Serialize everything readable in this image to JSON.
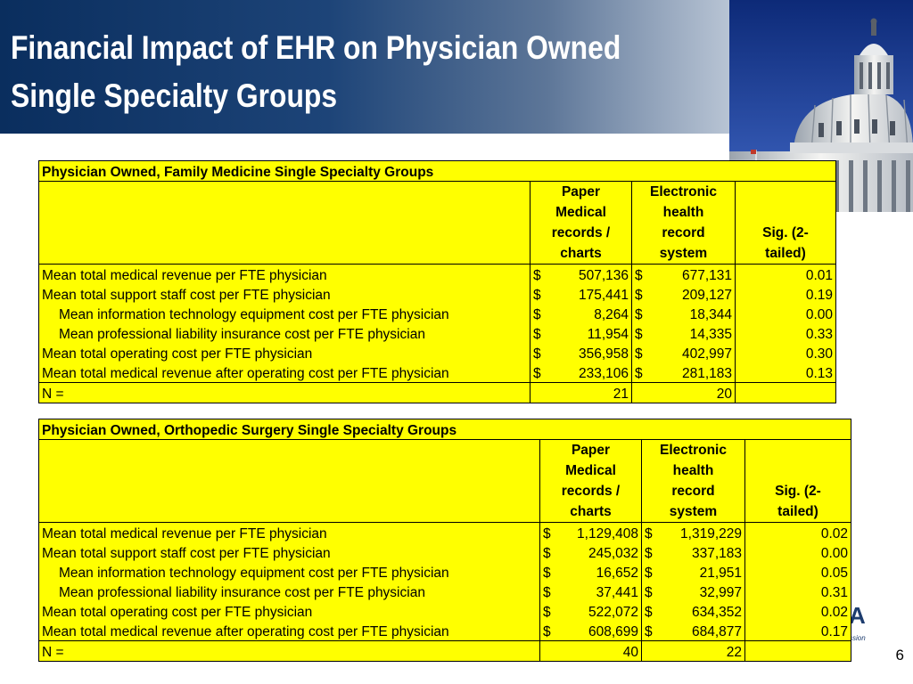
{
  "slide": {
    "title_line1": "Financial Impact of EHR on Physician Owned",
    "title_line2": "Single Specialty Groups",
    "page_number": "6",
    "logo_text": "A",
    "logo_subtext": "ssion"
  },
  "tables": [
    {
      "title": "Physician Owned, Family Medicine Single Specialty Groups",
      "col_paper": [
        "Paper",
        "Medical",
        "records /",
        "charts"
      ],
      "col_ehr": [
        "Electronic",
        "health",
        "record",
        "system"
      ],
      "col_sig": [
        "Sig. (2-",
        "tailed)"
      ],
      "rows": [
        {
          "label": "Mean total medical revenue per FTE physician",
          "cur1": "$",
          "paper": "507,136",
          "cur2": "$",
          "ehr": "677,131",
          "sig": "0.01"
        },
        {
          "label": "Mean total support staff cost per FTE physician",
          "cur1": "$",
          "paper": "175,441",
          "cur2": "$",
          "ehr": "209,127",
          "sig": "0.19"
        },
        {
          "label": "Mean information technology equipment cost per FTE physician",
          "cur1": "$",
          "paper": "8,264",
          "cur2": "$",
          "ehr": "18,344",
          "sig": "0.00"
        },
        {
          "label": "Mean professional liability insurance cost per FTE physician",
          "cur1": "$",
          "paper": "11,954",
          "cur2": "$",
          "ehr": "14,335",
          "sig": "0.33"
        },
        {
          "label": "Mean total operating cost per FTE physician",
          "cur1": "$",
          "paper": "356,958",
          "cur2": "$",
          "ehr": "402,997",
          "sig": "0.30"
        },
        {
          "label": "Mean total medical revenue after operating cost per FTE physician",
          "cur1": "$",
          "paper": "233,106",
          "cur2": "$",
          "ehr": "281,183",
          "sig": "0.13"
        }
      ],
      "n_label": "N =",
      "n_paper": "21",
      "n_ehr": "20"
    },
    {
      "title": "Physician Owned, Orthopedic Surgery Single Specialty Groups",
      "col_paper": [
        "Paper",
        "Medical",
        "records /",
        "charts"
      ],
      "col_ehr": [
        "Electronic",
        "health",
        "record",
        "system"
      ],
      "col_sig": [
        "Sig. (2-",
        "tailed)"
      ],
      "rows": [
        {
          "label": "Mean total medical revenue per FTE physician",
          "cur1": "$",
          "paper": "1,129,408",
          "cur2": "$",
          "ehr": "1,319,229",
          "sig": "0.02"
        },
        {
          "label": "Mean total support staff cost per FTE physician",
          "cur1": "$",
          "paper": "245,032",
          "cur2": "$",
          "ehr": "337,183",
          "sig": "0.00"
        },
        {
          "label": "Mean information technology equipment cost per FTE physician",
          "cur1": "$",
          "paper": "16,652",
          "cur2": "$",
          "ehr": "21,951",
          "sig": "0.05"
        },
        {
          "label": "Mean professional liability insurance cost per FTE physician",
          "cur1": "$",
          "paper": "37,441",
          "cur2": "$",
          "ehr": "32,997",
          "sig": "0.31"
        },
        {
          "label": "Mean total operating cost per FTE physician",
          "cur1": "$",
          "paper": "522,072",
          "cur2": "$",
          "ehr": "634,352",
          "sig": "0.02"
        },
        {
          "label": "Mean total medical revenue after operating cost per FTE physician",
          "cur1": "$",
          "paper": "608,699",
          "cur2": "$",
          "ehr": "684,877",
          "sig": "0.17"
        }
      ],
      "n_label": "N =",
      "n_paper": "40",
      "n_ehr": "22"
    }
  ]
}
